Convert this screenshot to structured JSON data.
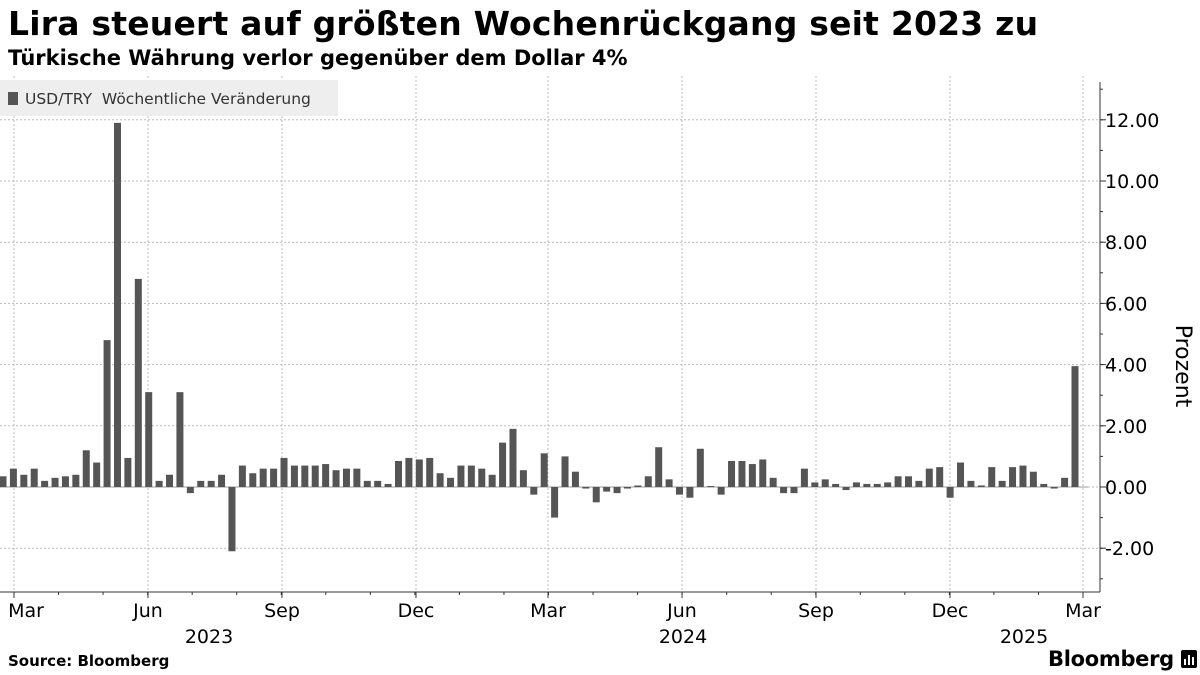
{
  "title": "Lira steuert auf größten Wochenrückgang seit 2023 zu",
  "subtitle": "Türkische Währung verlor gegenüber dem Dollar 4%",
  "source": "Source: Bloomberg",
  "brand": "Bloomberg",
  "colors": {
    "bar": "#555555",
    "grid": "#bbbbbb",
    "axis": "#333333",
    "legend_bg": "#eeeeee"
  },
  "chart_data": {
    "type": "bar",
    "ylabel": "Prozent",
    "ylim": [
      -3.5,
      13.3
    ],
    "yticks": [
      12.0,
      10.0,
      8.0,
      6.0,
      4.0,
      2.0,
      0.0,
      -2.0
    ],
    "ytick_labels": [
      "12.00",
      "10.00",
      "8.00",
      "6.00",
      "4.00",
      "2.00",
      "0.00",
      "-2.00"
    ],
    "x_month_ticks": [
      "Mar",
      "Jun",
      "Sep",
      "Dec",
      "Mar",
      "Jun",
      "Sep",
      "Dec",
      "Mar"
    ],
    "x_year_labels": [
      "2023",
      "2024",
      "2025"
    ],
    "grid": true,
    "legend_position": "top-left",
    "series": [
      {
        "name": "USD/TRY  Wöchentliche Veränderung",
        "values": [
          0.35,
          0.6,
          0.4,
          0.6,
          0.2,
          0.3,
          0.35,
          0.4,
          1.2,
          0.8,
          4.8,
          11.9,
          0.95,
          6.8,
          3.1,
          0.2,
          0.4,
          3.1,
          -0.2,
          0.2,
          0.2,
          0.4,
          -2.1,
          0.7,
          0.45,
          0.6,
          0.6,
          0.95,
          0.7,
          0.7,
          0.7,
          0.75,
          0.55,
          0.6,
          0.6,
          0.2,
          0.2,
          0.1,
          0.85,
          0.95,
          0.9,
          0.95,
          0.45,
          0.3,
          0.7,
          0.7,
          0.6,
          0.4,
          1.45,
          1.9,
          0.55,
          -0.25,
          1.1,
          -1.0,
          1.0,
          0.5,
          -0.05,
          -0.5,
          -0.15,
          -0.2,
          -0.05,
          0.05,
          0.35,
          1.3,
          0.25,
          -0.25,
          -0.35,
          1.25,
          0.0,
          -0.25,
          0.85,
          0.85,
          0.75,
          0.9,
          0.3,
          -0.2,
          -0.2,
          0.6,
          0.15,
          0.25,
          0.1,
          -0.1,
          0.15,
          0.1,
          0.1,
          0.15,
          0.35,
          0.35,
          0.2,
          0.6,
          0.65,
          -0.35,
          0.8,
          0.2,
          0.05,
          0.65,
          0.2,
          0.65,
          0.7,
          0.5,
          0.1,
          -0.05,
          0.3,
          3.95
        ]
      }
    ]
  }
}
